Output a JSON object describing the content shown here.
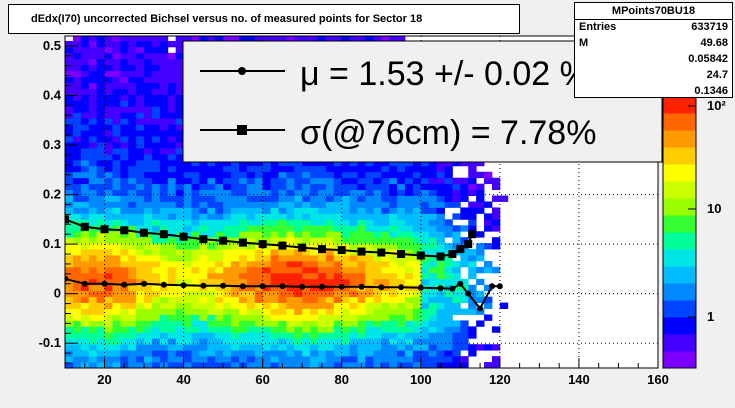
{
  "title": "dEdx(I70) uncorrected Bichsel versus no. of measured points for Sector 18",
  "stats": {
    "name": "MPoints70BU18",
    "rows": [
      {
        "label": "Entries",
        "value": "633719"
      },
      {
        "label": "M",
        "value": "49.68"
      },
      {
        "label": "",
        "value": "0.05842"
      },
      {
        "label": "",
        "value": "24.7"
      },
      {
        "label": "",
        "value": "0.1346"
      }
    ]
  },
  "legend": {
    "mu_label": "μ  =  1.53 +/-  0.02 %",
    "sigma_label": "σ(@76cm) =  7.78%"
  },
  "palette": {
    "colors": [
      "#7b00ff",
      "#4400ff",
      "#0000ff",
      "#0044ff",
      "#0088ff",
      "#00bbff",
      "#00e5e5",
      "#00ff99",
      "#33ff33",
      "#99ff00",
      "#ccff00",
      "#ffff00",
      "#ffcc00",
      "#ff9900",
      "#ff6600",
      "#ff2200"
    ],
    "tick_labels": [
      "1",
      "10",
      "10²"
    ]
  },
  "chart_data": {
    "type": "heatmap",
    "title": "dEdx(I70) uncorrected Bichsel versus no. of measured points for Sector 18",
    "xlabel": "",
    "ylabel": "",
    "xlim": [
      10,
      160
    ],
    "ylim": [
      -0.15,
      0.52
    ],
    "x_ticks": [
      20,
      40,
      60,
      80,
      100,
      120,
      140,
      160
    ],
    "y_ticks": [
      -0.1,
      0,
      0.1,
      0.2,
      0.3,
      0.4,
      0.5
    ],
    "y_tick_labels": [
      "-0.1",
      "0",
      "0.1",
      "0.2",
      "0.3",
      "0.4",
      "0.5"
    ],
    "grid": true,
    "z_log": true,
    "series": [
      {
        "name": "mu",
        "marker": "circle",
        "x": [
          10,
          15,
          20,
          25,
          30,
          35,
          40,
          45,
          50,
          55,
          60,
          65,
          70,
          75,
          80,
          85,
          90,
          95,
          100,
          105,
          108,
          110,
          112,
          115,
          118,
          120
        ],
        "y": [
          0.03,
          0.02,
          0.02,
          0.018,
          0.02,
          0.018,
          0.017,
          0.016,
          0.016,
          0.015,
          0.015,
          0.015,
          0.014,
          0.014,
          0.014,
          0.014,
          0.013,
          0.013,
          0.012,
          0.011,
          0.01,
          0.02,
          0.0,
          -0.03,
          0.015,
          0.015
        ]
      },
      {
        "name": "sigma",
        "marker": "square",
        "x": [
          10,
          15,
          20,
          25,
          30,
          35,
          40,
          45,
          50,
          55,
          60,
          65,
          70,
          75,
          80,
          85,
          90,
          95,
          100,
          105,
          108,
          110,
          112,
          113
        ],
        "y": [
          0.15,
          0.135,
          0.13,
          0.128,
          0.123,
          0.12,
          0.115,
          0.11,
          0.107,
          0.103,
          0.1,
          0.097,
          0.093,
          0.09,
          0.088,
          0.085,
          0.083,
          0.08,
          0.077,
          0.075,
          0.08,
          0.09,
          0.1,
          0.12
        ]
      }
    ]
  }
}
